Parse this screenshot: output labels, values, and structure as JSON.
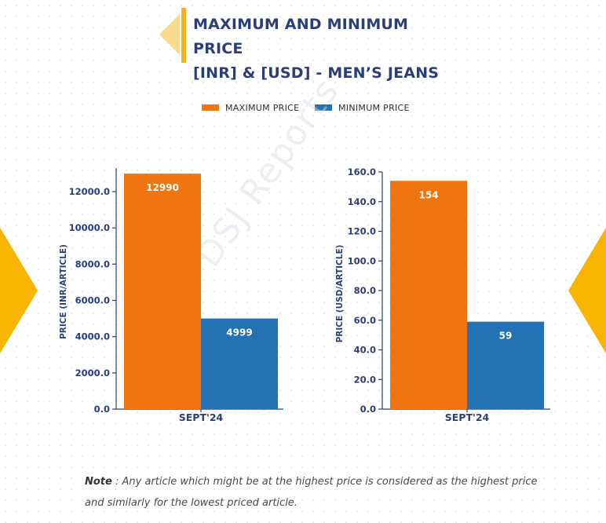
{
  "title": {
    "line1": "MAXIMUM AND MINIMUM PRICE",
    "line2": "[INR] & [USD] - MEN’S JEANS"
  },
  "colors": {
    "max": "#f07410",
    "min": "#2472b3",
    "accent": "#f5b21a",
    "title": "#2a3e78",
    "axis": "#2a3e78"
  },
  "legend": [
    {
      "label": "MAXIMUM PRICE",
      "color": "#f07410"
    },
    {
      "label": "MINIMUM PRICE",
      "color": "#2472b3"
    }
  ],
  "chart_data": [
    {
      "type": "bar",
      "categories": [
        "SEPT'24"
      ],
      "series": [
        {
          "name": "MAXIMUM PRICE",
          "values": [
            12990
          ],
          "labels": [
            "12990"
          ]
        },
        {
          "name": "MINIMUM PRICE",
          "values": [
            4999
          ],
          "labels": [
            "4999"
          ]
        }
      ],
      "ylabel": "PRICE (INR/ARTICLE)",
      "ylim": [
        0,
        13300
      ],
      "yticks": [
        0,
        2000,
        4000,
        6000,
        8000,
        10000,
        12000
      ],
      "ytick_labels": [
        "0.0",
        "2000.0",
        "4000.0",
        "6000.0",
        "8000.0",
        "10000.0",
        "12000.0"
      ],
      "grid": false
    },
    {
      "type": "bar",
      "categories": [
        "SEPT'24"
      ],
      "series": [
        {
          "name": "MAXIMUM PRICE",
          "values": [
            154
          ],
          "labels": [
            "154"
          ]
        },
        {
          "name": "MINIMUM PRICE",
          "values": [
            59
          ],
          "labels": [
            "59"
          ]
        }
      ],
      "ylabel": "PRICE (USD/ARTICLE)",
      "ylim": [
        0,
        160
      ],
      "yticks": [
        0,
        20,
        40,
        60,
        80,
        100,
        120,
        140,
        160
      ],
      "ytick_labels": [
        "0.0",
        "20.0",
        "40.0",
        "60.0",
        "80.0",
        "100.0",
        "120.0",
        "140.0",
        "160.0"
      ],
      "grid": false
    }
  ],
  "watermark": "DSJ Reports",
  "note": {
    "label": "Note",
    "text": " : Any article which might be at the highest price is considered as the highest price and similarly for the lowest priced article."
  }
}
